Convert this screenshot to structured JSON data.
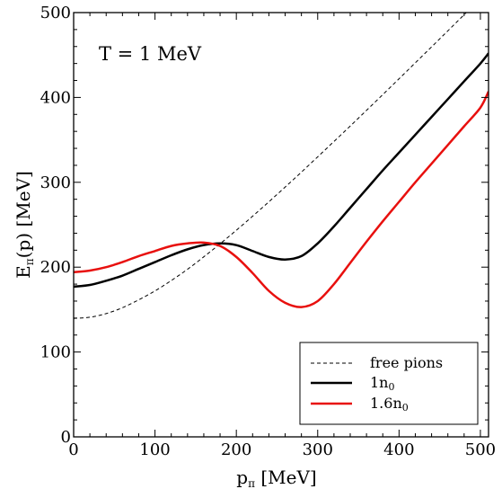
{
  "chart_data": {
    "type": "line",
    "title": "",
    "annotation": "T = 1 MeV",
    "xlabel": {
      "base": "p",
      "sub": "π",
      "unit": " [MeV]"
    },
    "ylabel": {
      "base": "E",
      "sub": "π",
      "rest": "(p) [MeV]"
    },
    "xlim": [
      0,
      510
    ],
    "ylim": [
      0,
      500
    ],
    "xticks": [
      0,
      100,
      200,
      300,
      400,
      500
    ],
    "yticks": [
      0,
      100,
      200,
      300,
      400,
      500
    ],
    "grid": false,
    "legend_position": "bottom-right",
    "series": [
      {
        "name": "free pions",
        "color": "#000000",
        "style": "dashed",
        "x": [
          0,
          20,
          40,
          60,
          80,
          100,
          120,
          140,
          160,
          180,
          200,
          220,
          240,
          260,
          280,
          300,
          320,
          340,
          360,
          380,
          400,
          420,
          440,
          460,
          480,
          500,
          510
        ],
        "y": [
          139.6,
          141.0,
          145.3,
          152.2,
          161.5,
          172.0,
          184.2,
          197.5,
          212.2,
          227.5,
          243.5,
          260.0,
          277.0,
          294.4,
          312.0,
          330.0,
          348.1,
          366.3,
          384.8,
          403.3,
          422.0,
          440.8,
          459.6,
          478.5,
          497.5,
          516.5,
          526.0
        ]
      },
      {
        "name": "1n",
        "sub": "0",
        "color": "#000000",
        "style": "solid",
        "x": [
          0,
          20,
          40,
          60,
          80,
          100,
          120,
          140,
          160,
          180,
          200,
          220,
          240,
          260,
          280,
          300,
          320,
          340,
          360,
          380,
          400,
          420,
          440,
          460,
          480,
          500,
          510
        ],
        "y": [
          177,
          179,
          184,
          190,
          198,
          206,
          214,
          221,
          226,
          228,
          226,
          219,
          212,
          209,
          213,
          228,
          248,
          270,
          292,
          314,
          335,
          356,
          377,
          398,
          419,
          440,
          452
        ]
      },
      {
        "name": "1.6n",
        "sub": "0",
        "color": "#e8100e",
        "style": "solid",
        "x": [
          0,
          20,
          40,
          60,
          80,
          100,
          120,
          140,
          160,
          180,
          200,
          220,
          240,
          260,
          280,
          300,
          320,
          340,
          360,
          380,
          400,
          420,
          440,
          460,
          480,
          500,
          510
        ],
        "y": [
          194,
          196,
          200,
          206,
          213,
          219,
          225,
          228,
          229,
          225,
          212,
          193,
          172,
          158,
          153,
          160,
          180,
          205,
          230,
          254,
          277,
          300,
          322,
          344,
          366,
          388,
          407
        ]
      }
    ]
  }
}
